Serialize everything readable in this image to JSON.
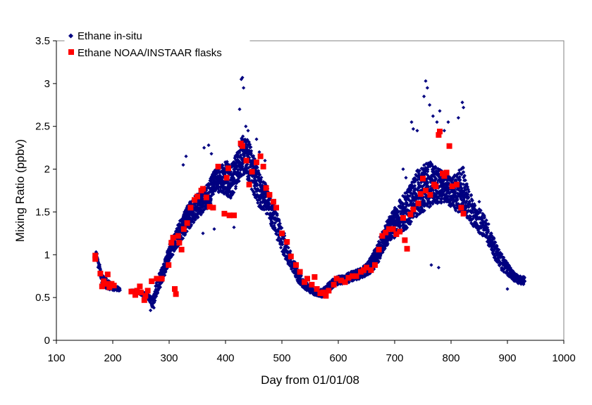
{
  "chart_data": {
    "type": "scatter",
    "title": "",
    "xlabel": "Day from 01/01/08",
    "ylabel": "Mixing Ratio (ppbv)",
    "xlim": [
      100,
      1000
    ],
    "ylim": [
      0,
      3.5
    ],
    "x_ticks": [
      100,
      200,
      300,
      400,
      500,
      600,
      700,
      800,
      900,
      1000
    ],
    "y_ticks": [
      0,
      0.5,
      1,
      1.5,
      2,
      2.5,
      3,
      3.5
    ],
    "x_tick_labels": [
      "100",
      "200",
      "300",
      "400",
      "500",
      "600",
      "700",
      "800",
      "900",
      "1000"
    ],
    "y_tick_labels": [
      "0",
      "0.5",
      "1",
      "1.5",
      "2",
      "2.5",
      "3",
      "3.5"
    ],
    "grid": false,
    "legend_position": "top-left",
    "series": [
      {
        "name": "Ethane in-situ",
        "marker": "diamond",
        "color": "#000080",
        "envelope": {
          "x": [
            170,
            180,
            190,
            200,
            210,
            240,
            260,
            270,
            280,
            290,
            300,
            310,
            320,
            330,
            340,
            350,
            360,
            370,
            380,
            390,
            400,
            410,
            420,
            430,
            440,
            450,
            460,
            470,
            480,
            490,
            500,
            510,
            520,
            530,
            540,
            550,
            560,
            570,
            580,
            590,
            600,
            610,
            620,
            630,
            640,
            650,
            660,
            670,
            680,
            690,
            700,
            710,
            720,
            730,
            740,
            750,
            760,
            770,
            780,
            790,
            800,
            810,
            820,
            830,
            840,
            850,
            860,
            870,
            880,
            890,
            900,
            910,
            920,
            930
          ],
          "low": [
            1.0,
            0.62,
            0.6,
            0.58,
            0.58,
            0.55,
            0.5,
            0.38,
            0.55,
            0.72,
            0.92,
            1.05,
            1.15,
            1.25,
            1.35,
            1.42,
            1.5,
            1.55,
            1.72,
            1.72,
            1.7,
            1.65,
            1.8,
            1.95,
            1.85,
            1.7,
            1.55,
            1.5,
            1.35,
            1.2,
            1.02,
            0.9,
            0.78,
            0.65,
            0.6,
            0.55,
            0.52,
            0.5,
            0.55,
            0.62,
            0.65,
            0.66,
            0.68,
            0.7,
            0.72,
            0.75,
            0.8,
            0.9,
            1.05,
            1.15,
            1.2,
            1.25,
            1.3,
            1.38,
            1.45,
            1.5,
            1.55,
            1.6,
            1.6,
            1.62,
            1.55,
            1.5,
            1.5,
            1.4,
            1.32,
            1.25,
            1.2,
            1.05,
            0.9,
            0.8,
            0.75,
            0.7,
            0.66,
            0.65
          ],
          "high": [
            1.05,
            0.78,
            0.72,
            0.65,
            0.62,
            0.58,
            0.55,
            0.5,
            0.75,
            0.9,
            1.12,
            1.28,
            1.42,
            1.55,
            1.65,
            1.72,
            1.78,
            1.85,
            2.0,
            2.05,
            2.1,
            2.05,
            2.2,
            2.4,
            2.35,
            2.15,
            1.95,
            1.85,
            1.7,
            1.5,
            1.32,
            1.15,
            0.95,
            0.8,
            0.7,
            0.64,
            0.6,
            0.6,
            0.66,
            0.72,
            0.75,
            0.76,
            0.8,
            0.82,
            0.85,
            0.9,
            1.0,
            1.15,
            1.3,
            1.45,
            1.55,
            1.65,
            1.75,
            1.85,
            2.0,
            2.05,
            2.1,
            2.05,
            2.0,
            1.95,
            1.9,
            1.95,
            2.05,
            1.8,
            1.6,
            1.55,
            1.45,
            1.3,
            1.12,
            1.0,
            0.9,
            0.82,
            0.76,
            0.74
          ]
        },
        "highlights": [
          [
            267,
            0.35
          ],
          [
            273,
            0.38
          ],
          [
            270,
            0.42
          ],
          [
            330,
            2.15
          ],
          [
            325,
            2.05
          ],
          [
            362,
            2.25
          ],
          [
            370,
            2.28
          ],
          [
            375,
            2.18
          ],
          [
            425,
            2.7
          ],
          [
            428,
            3.05
          ],
          [
            430,
            3.07
          ],
          [
            432,
            2.95
          ],
          [
            436,
            2.5
          ],
          [
            440,
            2.45
          ],
          [
            455,
            2.35
          ],
          [
            460,
            2.2
          ],
          [
            470,
            2.1
          ],
          [
            415,
            1.32
          ],
          [
            360,
            1.25
          ],
          [
            380,
            1.3
          ],
          [
            740,
            2.45
          ],
          [
            752,
            2.85
          ],
          [
            755,
            3.03
          ],
          [
            758,
            2.95
          ],
          [
            762,
            2.75
          ],
          [
            768,
            2.62
          ],
          [
            775,
            2.55
          ],
          [
            780,
            2.68
          ],
          [
            788,
            2.45
          ],
          [
            795,
            2.55
          ],
          [
            813,
            2.6
          ],
          [
            820,
            2.78
          ],
          [
            822,
            2.72
          ],
          [
            730,
            2.55
          ],
          [
            733,
            2.47
          ],
          [
            720,
            1.9
          ],
          [
            715,
            2.0
          ],
          [
            778,
            0.85
          ],
          [
            765,
            0.88
          ],
          [
            900,
            0.6
          ],
          [
            850,
            1.62
          ],
          [
            290,
            0.8
          ],
          [
            305,
            1.1
          ]
        ]
      },
      {
        "name": "Ethane NOAA/INSTAAR flasks",
        "marker": "square",
        "color": "#FF0000",
        "points": [
          [
            169,
            0.95
          ],
          [
            169,
            0.99
          ],
          [
            178,
            0.78
          ],
          [
            181,
            0.63
          ],
          [
            184,
            0.69
          ],
          [
            188,
            0.66
          ],
          [
            191,
            0.77
          ],
          [
            194,
            0.62
          ],
          [
            198,
            0.66
          ],
          [
            202,
            0.64
          ],
          [
            233,
            0.57
          ],
          [
            240,
            0.53
          ],
          [
            243,
            0.58
          ],
          [
            248,
            0.63
          ],
          [
            250,
            0.56
          ],
          [
            256,
            0.47
          ],
          [
            258,
            0.52
          ],
          [
            262,
            0.58
          ],
          [
            269,
            0.69
          ],
          [
            278,
            0.72
          ],
          [
            287,
            0.72
          ],
          [
            299,
            0.88
          ],
          [
            304,
            1.14
          ],
          [
            307,
            1.2
          ],
          [
            310,
            0.6
          ],
          [
            312,
            0.54
          ],
          [
            316,
            1.22
          ],
          [
            318,
            1.14
          ],
          [
            322,
            1.06
          ],
          [
            326,
            1.3
          ],
          [
            332,
            1.37
          ],
          [
            338,
            1.55
          ],
          [
            345,
            1.64
          ],
          [
            350,
            1.68
          ],
          [
            357,
            1.75
          ],
          [
            360,
            1.77
          ],
          [
            366,
            1.67
          ],
          [
            372,
            1.56
          ],
          [
            378,
            1.55
          ],
          [
            387,
            2.03
          ],
          [
            398,
            1.48
          ],
          [
            402,
            1.9
          ],
          [
            405,
            2.01
          ],
          [
            407,
            1.46
          ],
          [
            415,
            1.46
          ],
          [
            427,
            2.3
          ],
          [
            430,
            2.27
          ],
          [
            437,
            2.1
          ],
          [
            442,
            1.82
          ],
          [
            447,
            1.97
          ],
          [
            455,
            2.08
          ],
          [
            462,
            2.15
          ],
          [
            467,
            2.03
          ],
          [
            472,
            1.78
          ],
          [
            478,
            1.7
          ],
          [
            485,
            1.62
          ],
          [
            490,
            1.55
          ],
          [
            500,
            1.25
          ],
          [
            509,
            1.15
          ],
          [
            516,
            0.98
          ],
          [
            525,
            0.88
          ],
          [
            532,
            0.8
          ],
          [
            540,
            0.68
          ],
          [
            545,
            0.72
          ],
          [
            553,
            0.65
          ],
          [
            558,
            0.74
          ],
          [
            562,
            0.6
          ],
          [
            568,
            0.55
          ],
          [
            573,
            0.56
          ],
          [
            578,
            0.52
          ],
          [
            583,
            0.58
          ],
          [
            592,
            0.65
          ],
          [
            597,
            0.72
          ],
          [
            605,
            0.7
          ],
          [
            612,
            0.68
          ],
          [
            618,
            0.73
          ],
          [
            625,
            0.75
          ],
          [
            632,
            0.75
          ],
          [
            640,
            0.8
          ],
          [
            645,
            0.82
          ],
          [
            650,
            0.85
          ],
          [
            658,
            0.82
          ],
          [
            665,
            0.88
          ],
          [
            672,
            1.06
          ],
          [
            678,
            1.22
          ],
          [
            684,
            1.26
          ],
          [
            690,
            1.3
          ],
          [
            697,
            1.3
          ],
          [
            703,
            1.24
          ],
          [
            709,
            1.27
          ],
          [
            715,
            1.43
          ],
          [
            718,
            1.17
          ],
          [
            722,
            1.07
          ],
          [
            728,
            1.47
          ],
          [
            733,
            1.53
          ],
          [
            742,
            1.6
          ],
          [
            746,
            1.71
          ],
          [
            750,
            1.89
          ],
          [
            755,
            1.75
          ],
          [
            763,
            1.7
          ],
          [
            770,
            1.82
          ],
          [
            773,
            1.8
          ],
          [
            778,
            2.4
          ],
          [
            780,
            2.44
          ],
          [
            785,
            1.95
          ],
          [
            788,
            1.92
          ],
          [
            792,
            1.96
          ],
          [
            797,
            2.27
          ],
          [
            802,
            1.8
          ],
          [
            810,
            1.82
          ],
          [
            818,
            1.55
          ],
          [
            822,
            1.48
          ]
        ]
      }
    ]
  }
}
